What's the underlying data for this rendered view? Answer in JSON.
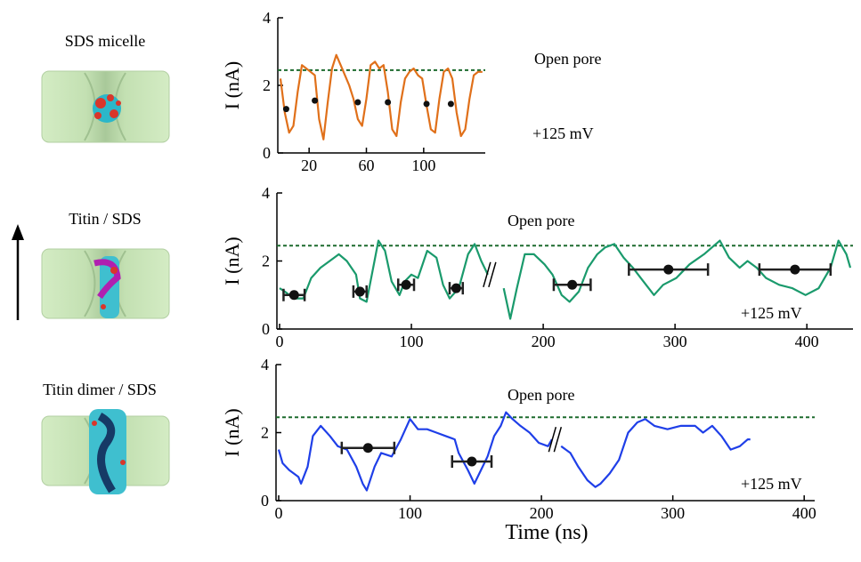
{
  "panels": [
    {
      "label": "SDS micelle"
    },
    {
      "label": "Titin / SDS"
    },
    {
      "label": "Titin dimer / SDS"
    }
  ],
  "chart_data": [
    {
      "type": "line",
      "ylabel": "I (nA)",
      "color": "#e0701a",
      "x": [
        0,
        3,
        6,
        9,
        12,
        15,
        18,
        21,
        24,
        27,
        30,
        33,
        36,
        39,
        42,
        45,
        48,
        51,
        54,
        57,
        60,
        63,
        66,
        69,
        72,
        75,
        78,
        81,
        84,
        87,
        90,
        93,
        96,
        99,
        102,
        105,
        108,
        111,
        114,
        117,
        120,
        123,
        126,
        129,
        132,
        135,
        138,
        141
      ],
      "values": [
        2.2,
        1.2,
        0.6,
        0.8,
        1.8,
        2.6,
        2.5,
        2.4,
        2.3,
        1.0,
        0.4,
        1.5,
        2.5,
        2.9,
        2.6,
        2.3,
        2.0,
        1.6,
        1.0,
        0.8,
        1.6,
        2.6,
        2.7,
        2.5,
        2.6,
        1.8,
        0.7,
        0.5,
        1.5,
        2.2,
        2.4,
        2.5,
        2.3,
        2.2,
        1.4,
        0.7,
        0.6,
        1.6,
        2.4,
        2.5,
        2.2,
        1.2,
        0.5,
        0.7,
        1.6,
        2.3,
        2.4,
        2.4
      ],
      "markers": {
        "x": [
          4,
          24,
          54,
          75,
          102,
          119
        ],
        "values": [
          1.3,
          1.55,
          1.5,
          1.5,
          1.45,
          1.45
        ]
      },
      "hline": 2.45,
      "annotations": [
        "Open pore",
        "+125 mV"
      ],
      "xlim": [
        0,
        143
      ],
      "xticks": [
        20,
        60,
        100
      ],
      "ylim": [
        0,
        4
      ],
      "yticks": [
        0,
        2,
        4
      ]
    },
    {
      "type": "line",
      "ylabel": "I (nA)",
      "color": "#1a9a6c",
      "x": [
        0,
        4,
        11,
        18,
        24,
        31,
        38,
        45,
        51,
        58,
        61,
        66,
        72,
        75,
        80,
        85,
        91,
        95,
        100,
        105,
        112,
        119,
        124,
        129,
        136,
        143,
        148,
        153,
        158,
        160,
        170,
        175,
        180,
        186,
        193,
        201,
        207,
        214,
        220,
        227,
        234,
        241,
        247,
        254,
        261,
        268,
        274,
        284,
        291,
        301,
        311,
        322,
        334,
        341,
        349,
        355,
        362,
        369,
        379,
        389,
        399,
        409,
        418,
        424,
        430,
        433
      ],
      "values": [
        1.2,
        1.1,
        0.9,
        0.9,
        1.5,
        1.8,
        2.0,
        2.2,
        2.0,
        1.6,
        0.9,
        0.8,
        2.0,
        2.6,
        2.3,
        1.4,
        1.0,
        1.4,
        1.6,
        1.5,
        2.3,
        2.1,
        1.3,
        0.9,
        1.2,
        2.2,
        2.5,
        2.0,
        1.6,
        null,
        1.2,
        0.3,
        1.2,
        2.2,
        2.2,
        1.9,
        1.6,
        1.0,
        0.8,
        1.1,
        1.8,
        2.2,
        2.4,
        2.5,
        2.1,
        1.8,
        1.5,
        1.0,
        1.3,
        1.5,
        1.9,
        2.2,
        2.6,
        2.1,
        1.8,
        2.0,
        1.8,
        1.5,
        1.3,
        1.2,
        1.0,
        1.2,
        1.8,
        2.6,
        2.2,
        1.8
      ],
      "markers": {
        "x": [
          11,
          61,
          96,
          134,
          222,
          295,
          391
        ],
        "values": [
          1.0,
          1.1,
          1.3,
          1.2,
          1.3,
          1.75,
          1.75
        ],
        "xerr": [
          8,
          5,
          6,
          5,
          14,
          30,
          27
        ]
      },
      "hline": 2.45,
      "annotations": [
        "Open pore",
        "+125 mV"
      ],
      "xlim": [
        0,
        435
      ],
      "xticks": [
        0,
        100,
        200,
        300,
        400
      ],
      "ylim": [
        0,
        4
      ],
      "yticks": [
        0,
        2,
        4
      ]
    },
    {
      "type": "line",
      "ylabel": "I (nA)",
      "xlabel": "Time (ns)",
      "color": "#1f3fe8",
      "x": [
        0,
        3,
        8,
        15,
        17,
        22,
        26,
        32,
        39,
        45,
        52,
        59,
        64,
        67,
        73,
        78,
        86,
        93,
        100,
        106,
        113,
        120,
        127,
        134,
        137,
        144,
        149,
        154,
        159,
        164,
        169,
        173,
        178,
        184,
        191,
        198,
        205,
        208,
        211,
        215,
        222,
        228,
        235,
        241,
        245,
        252,
        259,
        266,
        273,
        279,
        286,
        296,
        306,
        317,
        323,
        330,
        337,
        344,
        351,
        357,
        359
      ],
      "values": [
        1.5,
        1.1,
        0.9,
        0.7,
        0.5,
        1.0,
        1.9,
        2.2,
        1.9,
        1.6,
        1.5,
        1.0,
        0.5,
        0.3,
        1.0,
        1.4,
        1.3,
        1.8,
        2.4,
        2.1,
        2.1,
        2.0,
        1.9,
        1.8,
        1.4,
        0.9,
        0.5,
        0.9,
        1.3,
        1.9,
        2.2,
        2.6,
        2.4,
        2.2,
        2.0,
        1.7,
        1.6,
        1.8,
        null,
        1.6,
        1.4,
        1.0,
        0.6,
        0.4,
        0.5,
        0.8,
        1.2,
        2.0,
        2.3,
        2.4,
        2.2,
        2.1,
        2.2,
        2.2,
        2.0,
        2.2,
        1.9,
        1.5,
        1.6,
        1.8,
        1.8
      ],
      "markers": {
        "x": [
          68,
          147
        ],
        "values": [
          1.55,
          1.15
        ],
        "xerr": [
          20,
          15
        ]
      },
      "hline": 2.45,
      "annotations": [
        "Open pore",
        "+125 mV"
      ],
      "xlim": [
        0,
        408
      ],
      "xticks": [
        0,
        100,
        200,
        300,
        400
      ],
      "ylim": [
        0,
        4
      ],
      "yticks": [
        0,
        2,
        4
      ]
    }
  ]
}
